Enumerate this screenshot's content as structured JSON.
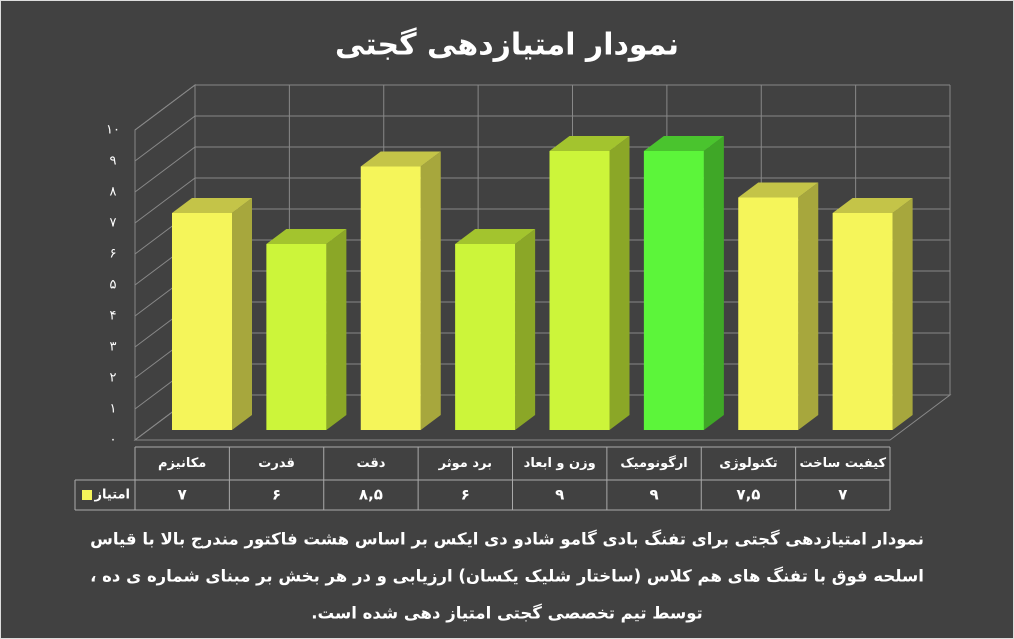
{
  "chart_data": {
    "type": "bar3d",
    "title": "نمودار امتیازدهی گجتی",
    "categories": [
      "مکانیزم",
      "قدرت",
      "دقت",
      "برد موثر",
      "وزن و ابعاد",
      "ارگونومیک",
      "تکنولوژی",
      "کیفیت ساخت"
    ],
    "series": [
      {
        "name": "امتیاز",
        "color": "#f5f55a",
        "values": [
          7,
          6,
          8.5,
          6,
          9,
          9,
          7.5,
          7
        ],
        "value_labels": [
          "۷",
          "۶",
          "۸,۵",
          "۶",
          "۹",
          "۹",
          "۷,۵",
          "۷"
        ],
        "colors": [
          "#f5f55a",
          "#ccf53a",
          "#f5f55a",
          "#ccf53a",
          "#ccf53a",
          "#5cf53a",
          "#f5f55a",
          "#f5f55a"
        ]
      }
    ],
    "ylim": [
      0,
      10
    ],
    "yticks": [
      {
        "value": 0,
        "label": "۰"
      },
      {
        "value": 1,
        "label": "۱"
      },
      {
        "value": 2,
        "label": "۲"
      },
      {
        "value": 3,
        "label": "۳"
      },
      {
        "value": 4,
        "label": "۴"
      },
      {
        "value": 5,
        "label": "۵"
      },
      {
        "value": 6,
        "label": "۶"
      },
      {
        "value": 7,
        "label": "۷"
      },
      {
        "value": 8,
        "label": "۸"
      },
      {
        "value": 9,
        "label": "۹"
      },
      {
        "value": 10,
        "label": "۱۰"
      }
    ],
    "grid": true,
    "description": [
      "نمودار امتیازدهی گجتی برای تفنگ بادی گامو شادو دی ایکس بر اساس هشت فاکتور مندرج بالا با قیاس",
      "اسلحه فوق با تفنگ های هم کلاس (ساختار شلیک یکسان) ارزیابی و در هر بخش بر مبنای شماره ی ده ،",
      "توسط تیم تخصصی گجتی امتیاز دهی شده است."
    ]
  }
}
